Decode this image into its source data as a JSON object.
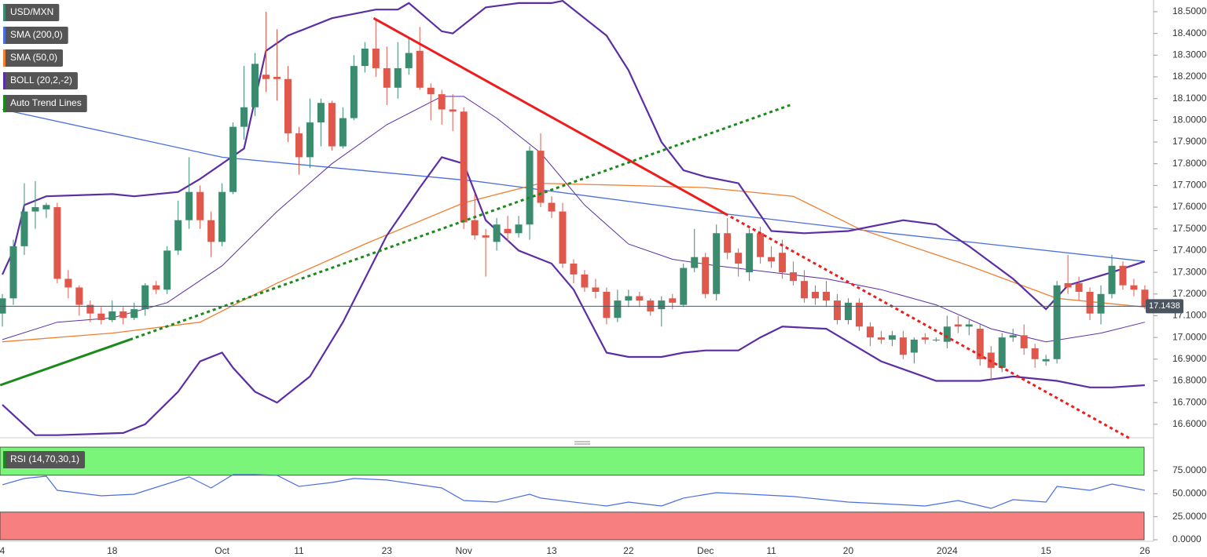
{
  "chart_data": [
    {
      "type": "candlestick",
      "name": "USD/MXN",
      "categories": [
        "4",
        null,
        null,
        null,
        null,
        null,
        null,
        null,
        null,
        null,
        "18",
        null,
        null,
        null,
        null,
        null,
        null,
        null,
        null,
        null,
        "Oct",
        null,
        null,
        null,
        null,
        null,
        null,
        "11",
        null,
        null,
        null,
        null,
        null,
        null,
        null,
        "23",
        null,
        null,
        null,
        null,
        null,
        null,
        "Nov",
        null,
        null,
        null,
        null,
        null,
        null,
        null,
        "13",
        null,
        null,
        null,
        null,
        null,
        null,
        "22",
        null,
        null,
        null,
        null,
        null,
        null,
        "Dec",
        null,
        null,
        null,
        null,
        null,
        "11",
        null,
        null,
        null,
        null,
        null,
        null,
        "20",
        null,
        null,
        null,
        null,
        null,
        null,
        null,
        null,
        "2024",
        null,
        null,
        null,
        null,
        null,
        null,
        null,
        null,
        "15",
        null,
        null,
        null,
        null,
        null,
        null,
        null,
        null,
        "26"
      ],
      "open": [
        17.11,
        17.18,
        17.42,
        17.58,
        17.59,
        17.6,
        17.27,
        17.23,
        17.15,
        17.11,
        17.08,
        17.12,
        17.09,
        17.13,
        17.24,
        17.22,
        17.4,
        17.54,
        17.67,
        17.54,
        17.44,
        17.67,
        17.97,
        18.06,
        18.21,
        18.2,
        18.19,
        17.94,
        17.83,
        17.99,
        18.08,
        17.88,
        18.01,
        18.25,
        18.33,
        18.24,
        18.15,
        18.24,
        18.32,
        18.15,
        18.12,
        18.05,
        18.04,
        17.54,
        17.47,
        17.44,
        17.5,
        17.48,
        17.52,
        17.86,
        17.62,
        17.58,
        17.34,
        17.29,
        17.23,
        17.21,
        17.09,
        17.17,
        17.19,
        17.17,
        17.13,
        17.18,
        17.15,
        17.32,
        17.37,
        17.2,
        17.48,
        17.39,
        17.3,
        17.48,
        17.37,
        17.39,
        17.3,
        17.26,
        17.21,
        17.21,
        17.17,
        17.08,
        17.16,
        17.05,
        17.0,
        16.99,
        17.0,
        16.93,
        17.0,
        16.99,
        16.98,
        17.06,
        17.05,
        17.04,
        16.93,
        16.86,
        17.0,
        17.01,
        16.95,
        16.89,
        16.9,
        17.25,
        17.25,
        17.21,
        17.11,
        17.2,
        17.33,
        17.24,
        17.22
      ],
      "high": [
        17.2,
        17.45,
        17.71,
        17.72,
        17.62,
        17.62,
        17.31,
        17.24,
        17.17,
        17.14,
        17.17,
        17.14,
        17.16,
        17.25,
        17.26,
        17.42,
        17.63,
        17.83,
        17.7,
        17.58,
        17.71,
        17.99,
        18.25,
        18.31,
        18.5,
        18.42,
        18.25,
        17.97,
        18.1,
        18.1,
        18.09,
        18.06,
        18.3,
        18.36,
        18.47,
        18.34,
        18.36,
        18.38,
        18.43,
        18.17,
        18.14,
        18.12,
        18.06,
        17.66,
        17.5,
        17.55,
        17.56,
        17.56,
        17.88,
        17.94,
        17.65,
        17.62,
        17.36,
        17.31,
        17.27,
        17.23,
        17.22,
        17.22,
        17.21,
        17.18,
        17.19,
        17.2,
        17.34,
        17.5,
        17.39,
        17.52,
        17.55,
        17.41,
        17.5,
        17.51,
        17.42,
        17.45,
        17.35,
        17.31,
        17.24,
        17.26,
        17.2,
        17.18,
        17.18,
        17.07,
        17.03,
        17.03,
        17.03,
        17.0,
        17.02,
        17.0,
        17.1,
        17.1,
        17.08,
        17.06,
        16.96,
        17.02,
        17.04,
        17.06,
        16.97,
        16.92,
        17.26,
        17.38,
        17.28,
        17.23,
        17.24,
        17.38,
        17.35,
        17.27,
        17.24
      ],
      "low": [
        17.05,
        17.15,
        17.38,
        17.5,
        17.55,
        17.25,
        17.18,
        17.1,
        17.07,
        17.06,
        17.07,
        17.06,
        17.08,
        17.1,
        17.2,
        17.2,
        17.38,
        17.5,
        17.5,
        17.37,
        17.42,
        17.66,
        17.91,
        18.02,
        18.13,
        18.09,
        17.9,
        17.75,
        17.78,
        17.88,
        17.86,
        17.87,
        18.0,
        18.22,
        18.2,
        18.07,
        18.1,
        18.21,
        18.14,
        18.0,
        17.98,
        17.95,
        17.5,
        17.45,
        17.28,
        17.4,
        17.44,
        17.46,
        17.45,
        17.6,
        17.55,
        17.32,
        17.25,
        17.21,
        17.18,
        17.06,
        17.07,
        17.14,
        17.14,
        17.1,
        17.05,
        17.13,
        17.14,
        17.3,
        17.18,
        17.17,
        17.36,
        17.28,
        17.26,
        17.34,
        17.32,
        17.27,
        17.24,
        17.16,
        17.15,
        17.14,
        17.06,
        17.06,
        17.03,
        16.96,
        16.97,
        16.96,
        16.9,
        16.88,
        16.97,
        16.98,
        16.95,
        17.02,
        17.01,
        16.87,
        16.8,
        16.84,
        16.98,
        16.92,
        16.86,
        16.87,
        16.88,
        17.2,
        17.17,
        17.08,
        17.06,
        17.18,
        17.22,
        17.19,
        17.13
      ],
      "close": [
        17.18,
        17.42,
        17.58,
        17.6,
        17.61,
        17.27,
        17.23,
        17.15,
        17.11,
        17.08,
        17.12,
        17.09,
        17.13,
        17.24,
        17.22,
        17.4,
        17.54,
        17.67,
        17.54,
        17.44,
        17.67,
        17.97,
        18.06,
        18.26,
        18.19,
        18.19,
        17.94,
        17.83,
        17.99,
        18.08,
        17.88,
        18.01,
        18.25,
        18.33,
        18.24,
        18.15,
        18.24,
        18.31,
        18.15,
        18.12,
        18.05,
        18.04,
        17.53,
        17.47,
        17.46,
        17.52,
        17.48,
        17.52,
        17.86,
        17.62,
        17.58,
        17.34,
        17.29,
        17.23,
        17.21,
        17.09,
        17.17,
        17.19,
        17.17,
        17.12,
        17.17,
        17.16,
        17.32,
        17.37,
        17.2,
        17.48,
        17.39,
        17.34,
        17.48,
        17.37,
        17.35,
        17.3,
        17.26,
        17.18,
        17.18,
        17.17,
        17.08,
        17.16,
        17.05,
        17.0,
        16.99,
        17.01,
        16.92,
        16.99,
        16.99,
        16.99,
        17.05,
        17.05,
        17.06,
        16.9,
        16.86,
        17.0,
        17.01,
        16.95,
        16.9,
        16.9,
        17.24,
        17.23,
        17.21,
        17.11,
        17.2,
        17.33,
        17.24,
        17.22,
        17.14
      ],
      "up_color": "#3b8c6e",
      "down_color": "#e0584c",
      "series": [
        {
          "name": "SMA (200,0)",
          "color": "#4a6ee0",
          "x": [
            0,
            10,
            20,
            43,
            64,
            79,
            104
          ],
          "values": [
            18.05,
            17.94,
            17.83,
            17.72,
            17.58,
            17.49,
            17.35
          ]
        },
        {
          "name": "SMA (50,0)",
          "color": "#f07f30",
          "x": [
            0,
            10,
            18,
            25,
            33,
            42,
            49,
            57,
            64,
            72,
            78,
            88,
            96,
            104
          ],
          "values": [
            16.98,
            17.02,
            17.07,
            17.25,
            17.43,
            17.62,
            17.71,
            17.7,
            17.69,
            17.65,
            17.5,
            17.33,
            17.18,
            17.14
          ]
        }
      ],
      "bollinger": {
        "name": "BOLL (20,2,-2)",
        "color": "#5b2ea6",
        "upper": {
          "x": [
            0,
            1,
            2,
            4,
            10,
            12,
            16,
            18,
            22,
            24,
            26,
            30,
            34,
            36,
            37,
            40,
            41,
            44,
            47,
            50,
            51,
            55,
            57,
            60,
            62,
            64,
            67,
            70,
            73,
            77,
            80,
            82,
            85,
            88,
            92,
            95,
            97,
            101,
            104
          ],
          "values": [
            17.29,
            17.4,
            17.61,
            17.65,
            17.66,
            17.65,
            17.67,
            17.73,
            17.87,
            18.32,
            18.39,
            18.47,
            18.51,
            18.51,
            18.54,
            18.41,
            18.4,
            18.52,
            18.54,
            18.54,
            18.55,
            18.39,
            18.23,
            17.9,
            17.77,
            17.74,
            17.71,
            17.49,
            17.48,
            17.49,
            17.52,
            17.54,
            17.52,
            17.42,
            17.27,
            17.13,
            17.24,
            17.3,
            17.35
          ]
        },
        "middle": {
          "x": [
            0,
            5,
            10,
            15,
            20,
            25,
            30,
            35,
            40,
            42,
            45,
            49,
            53,
            57,
            61,
            65,
            70,
            75,
            80,
            85,
            90,
            95,
            100,
            104
          ],
          "values": [
            16.99,
            17.07,
            17.09,
            17.16,
            17.33,
            17.58,
            17.8,
            17.98,
            18.11,
            18.11,
            18.01,
            17.85,
            17.61,
            17.43,
            17.36,
            17.33,
            17.3,
            17.27,
            17.22,
            17.15,
            17.04,
            16.98,
            17.02,
            17.07
          ]
        },
        "lower": {
          "x": [
            0,
            3,
            5,
            11,
            13,
            16,
            18,
            20,
            21,
            23,
            25,
            28,
            31,
            35,
            38,
            40,
            42,
            44,
            47,
            50,
            52,
            55,
            57,
            60,
            62,
            64,
            67,
            69,
            71,
            75,
            80,
            85,
            89,
            92,
            96,
            99,
            101,
            104
          ],
          "values": [
            16.69,
            16.55,
            16.55,
            16.56,
            16.6,
            16.75,
            16.89,
            16.93,
            16.86,
            16.75,
            16.7,
            16.82,
            17.07,
            17.47,
            17.69,
            17.83,
            17.8,
            17.54,
            17.4,
            17.34,
            17.22,
            16.93,
            16.91,
            16.91,
            16.93,
            16.94,
            16.94,
            17.0,
            17.05,
            17.04,
            16.89,
            16.8,
            16.8,
            16.82,
            16.8,
            16.77,
            16.77,
            16.78
          ]
        }
      },
      "trend_lines": {
        "name": "Auto Trend Lines",
        "segments": [
          {
            "color": "#ee1c1c",
            "dashed": false,
            "x": [
              33.8,
              65.8
            ],
            "values": [
              18.47,
              17.57
            ]
          },
          {
            "color": "#ee1c1c",
            "dashed": true,
            "x": [
              65.8,
              102.8
            ],
            "values": [
              17.57,
              16.53
            ]
          },
          {
            "color": "#1a8a1a",
            "dashed": false,
            "x": [
              -0.2,
              11.6
            ],
            "values": [
              16.78,
              16.99
            ]
          },
          {
            "color": "#1a8a1a",
            "dashed": true,
            "x": [
              11.6,
              71.7
            ],
            "values": [
              16.99,
              18.07
            ]
          }
        ]
      },
      "last_price": 17.1438,
      "ylim": [
        16.538,
        18.554
      ],
      "yticks": [
        {
          "value": 16.6,
          "label": "16.6000"
        },
        {
          "value": 16.7,
          "label": "16.7000"
        },
        {
          "value": 16.8,
          "label": "16.8000"
        },
        {
          "value": 16.9,
          "label": "16.9000"
        },
        {
          "value": 17.0,
          "label": "17.0000"
        },
        {
          "value": 17.1,
          "label": "17.1000"
        },
        {
          "value": 17.2,
          "label": "17.2000"
        },
        {
          "value": 17.3,
          "label": "17.3000"
        },
        {
          "value": 17.4,
          "label": "17.4000"
        },
        {
          "value": 17.5,
          "label": "17.5000"
        },
        {
          "value": 17.6,
          "label": "17.6000"
        },
        {
          "value": 17.7,
          "label": "17.7000"
        },
        {
          "value": 17.8,
          "label": "17.8000"
        },
        {
          "value": 17.9,
          "label": "17.9000"
        },
        {
          "value": 18.0,
          "label": "18.0000"
        },
        {
          "value": 18.1,
          "label": "18.1000"
        },
        {
          "value": 18.2,
          "label": "18.2000"
        },
        {
          "value": 18.3,
          "label": "18.3000"
        },
        {
          "value": 18.4,
          "label": "18.4000"
        },
        {
          "value": 18.5,
          "label": "18.5000"
        }
      ]
    },
    {
      "type": "line",
      "series": [
        {
          "name": "RSI (14,70,30,1)",
          "color": "#4a6ee0",
          "x": [
            0,
            2,
            4,
            5,
            9,
            12,
            17,
            19,
            21,
            23,
            25,
            27,
            30,
            32,
            35,
            40,
            42,
            45,
            48,
            49,
            55,
            57,
            60,
            62,
            65,
            68,
            72,
            77,
            80,
            84,
            87,
            90,
            92,
            95,
            96,
            99,
            101,
            104
          ],
          "values": [
            59.7,
            66.5,
            69.0,
            53.7,
            47.7,
            49.4,
            68.2,
            56.2,
            70.7,
            70.7,
            69.9,
            57.9,
            62.2,
            66.5,
            64.8,
            56.2,
            42.6,
            40.9,
            49.4,
            45.2,
            36.6,
            40.9,
            36.6,
            45.2,
            51.1,
            49.4,
            46.9,
            40.9,
            39.2,
            36.6,
            42.6,
            34.1,
            43.5,
            40.9,
            57.9,
            53.7,
            60.5,
            53.7
          ]
        }
      ],
      "bands": [
        {
          "from": 70,
          "to": 100.5,
          "color": "#7af57a"
        },
        {
          "from": 0,
          "to": 30,
          "color": "#f87f7f"
        }
      ],
      "ylim": [
        -1.7,
        100.5
      ],
      "yticks": [
        {
          "value": 0,
          "label": "0.0000"
        },
        {
          "value": 25,
          "label": "25.0000"
        },
        {
          "value": 50,
          "label": "50.0000"
        },
        {
          "value": 75,
          "label": "75.0000"
        }
      ]
    }
  ]
}
